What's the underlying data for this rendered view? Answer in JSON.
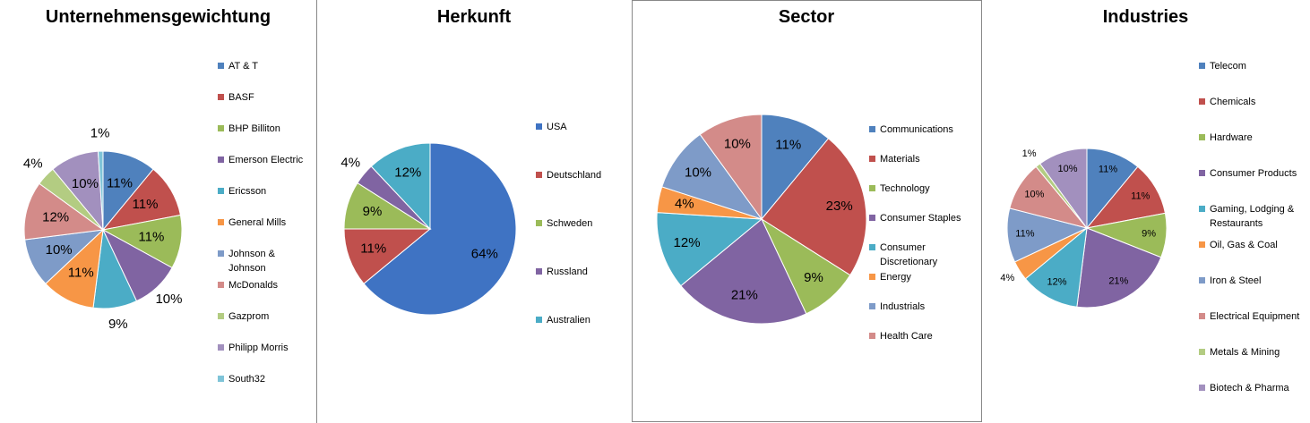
{
  "chart_data": [
    {
      "type": "pie",
      "title": "Unternehmensgewichtung",
      "categories": [
        "AT & T",
        "BASF",
        "BHP Billiton",
        "Emerson Electric",
        "Ericsson",
        "General Mills",
        "Johnson & Johnson",
        "McDonalds",
        "Gazprom",
        "Philipp Morris",
        "South32"
      ],
      "values": [
        11,
        11,
        11,
        10,
        9,
        11,
        10,
        12,
        4,
        10,
        1
      ],
      "value_labels": [
        "11%",
        "11%",
        "11%",
        "10%",
        "9%",
        "11%",
        "10%",
        "12%",
        "4%",
        "10%",
        "1%"
      ],
      "colors": [
        "#4F81BD",
        "#C0504D",
        "#9BBB59",
        "#8064A2",
        "#4BACC6",
        "#F79646",
        "#7E9BC8",
        "#D38B89",
        "#B3CC82",
        "#A290BE",
        "#7FC4D8"
      ],
      "legend": "right"
    },
    {
      "type": "pie",
      "title": "Herkunft",
      "categories": [
        "USA",
        "Deutschland",
        "Schweden",
        "Russland",
        "Australien"
      ],
      "values": [
        64,
        11,
        9,
        4,
        12
      ],
      "value_labels": [
        "64%",
        "11%",
        "9%",
        "4%",
        "12%"
      ],
      "colors": [
        "#3F73C3",
        "#C0504D",
        "#9BBB59",
        "#8064A2",
        "#4BACC6"
      ],
      "legend": "right"
    },
    {
      "type": "pie",
      "title": "Sector",
      "categories": [
        "Communications",
        "Materials",
        "Technology",
        "Consumer Staples",
        "Consumer Discretionary",
        "Energy",
        "Industrials",
        "Health Care"
      ],
      "values": [
        11,
        23,
        9,
        21,
        12,
        4,
        10,
        10
      ],
      "value_labels": [
        "11%",
        "23%",
        "9%",
        "21%",
        "12%",
        "4%",
        "10%",
        "10%"
      ],
      "colors": [
        "#4F81BD",
        "#C0504D",
        "#9BBB59",
        "#8064A2",
        "#4BACC6",
        "#F79646",
        "#7E9BC8",
        "#D38B89"
      ],
      "legend": "right"
    },
    {
      "type": "pie",
      "title": "Industries",
      "categories": [
        "Telecom",
        "Chemicals",
        "Hardware",
        "Consumer Products",
        "Gaming, Lodging & Restaurants",
        "Oil, Gas & Coal",
        "Iron & Steel",
        "Electrical Equipment",
        "Metals & Mining",
        "Biotech & Pharma"
      ],
      "values": [
        11,
        11,
        9,
        21,
        12,
        4,
        11,
        10,
        1,
        10
      ],
      "value_labels": [
        "11%",
        "11%",
        "9%",
        "21%",
        "12%",
        "4%",
        "11%",
        "10%",
        "1%",
        "10%"
      ],
      "colors": [
        "#4F81BD",
        "#C0504D",
        "#9BBB59",
        "#8064A2",
        "#4BACC6",
        "#F79646",
        "#7E9BC8",
        "#D38B89",
        "#B3CC82",
        "#A290BE"
      ],
      "legend": "right"
    }
  ]
}
